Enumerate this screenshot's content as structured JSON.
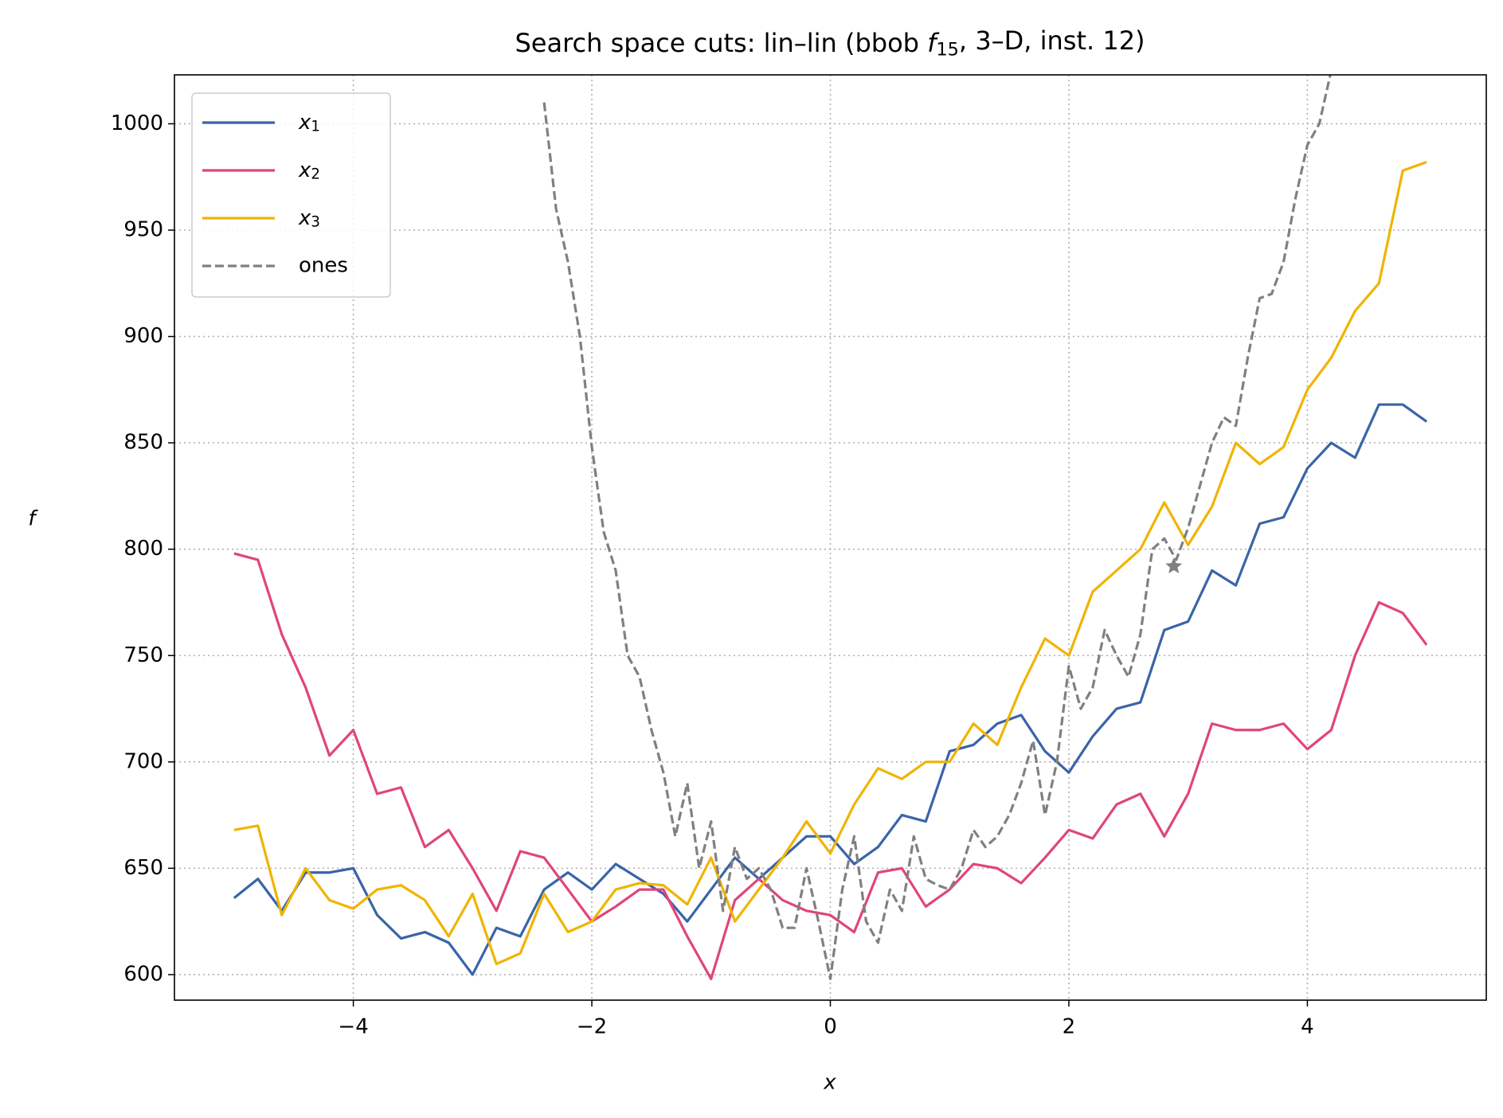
{
  "chart_data": {
    "type": "line",
    "title": "Search space cuts: lin–lin (bbob f15, 3–D, inst. 12)",
    "xlabel": "x",
    "ylabel": "f",
    "xlim": [
      -5.5,
      5.5
    ],
    "ylim": [
      588,
      1023
    ],
    "xticks": [
      {
        "value": -4,
        "label": "−4"
      },
      {
        "value": -2,
        "label": "−2"
      },
      0,
      2,
      4
    ],
    "yticks": [
      600,
      650,
      700,
      750,
      800,
      850,
      900,
      950,
      1000
    ],
    "grid": true,
    "legend": "upper left",
    "series": [
      {
        "name": "x1",
        "color": "#3a64a8",
        "style": "solid",
        "x": [
          -5.0,
          -4.8,
          -4.6,
          -4.4,
          -4.2,
          -4.0,
          -3.8,
          -3.6,
          -3.4,
          -3.2,
          -3.0,
          -2.8,
          -2.6,
          -2.4,
          -2.2,
          -2.0,
          -1.8,
          -1.6,
          -1.4,
          -1.2,
          -1.0,
          -0.8,
          -0.6,
          -0.4,
          -0.2,
          0.0,
          0.2,
          0.4,
          0.6,
          0.8,
          1.0,
          1.2,
          1.4,
          1.6,
          1.8,
          2.0,
          2.2,
          2.4,
          2.6,
          2.8,
          3.0,
          3.2,
          3.4,
          3.6,
          3.8,
          4.0,
          4.2,
          4.4,
          4.6,
          4.8,
          5.0
        ],
        "values": [
          636,
          645,
          630,
          648,
          648,
          650,
          628,
          617,
          620,
          615,
          600,
          622,
          618,
          640,
          648,
          640,
          652,
          645,
          638,
          625,
          640,
          655,
          645,
          655,
          665,
          665,
          652,
          660,
          675,
          672,
          705,
          708,
          718,
          722,
          705,
          695,
          712,
          725,
          728,
          762,
          766,
          790,
          783,
          812,
          815,
          838,
          850,
          843,
          868,
          868,
          860
        ]
      },
      {
        "name": "x2",
        "color": "#e0457b",
        "style": "solid",
        "x": [
          -5.0,
          -4.8,
          -4.6,
          -4.4,
          -4.2,
          -4.0,
          -3.8,
          -3.6,
          -3.4,
          -3.2,
          -3.0,
          -2.8,
          -2.6,
          -2.4,
          -2.2,
          -2.0,
          -1.8,
          -1.6,
          -1.4,
          -1.2,
          -1.0,
          -0.8,
          -0.6,
          -0.4,
          -0.2,
          0.0,
          0.2,
          0.4,
          0.6,
          0.8,
          1.0,
          1.2,
          1.4,
          1.6,
          1.8,
          2.0,
          2.2,
          2.4,
          2.6,
          2.8,
          3.0,
          3.2,
          3.4,
          3.6,
          3.8,
          4.0,
          4.2,
          4.4,
          4.6,
          4.8,
          5.0
        ],
        "values": [
          798,
          795,
          760,
          735,
          703,
          715,
          685,
          688,
          660,
          668,
          650,
          630,
          658,
          655,
          640,
          625,
          632,
          640,
          640,
          618,
          598,
          635,
          645,
          635,
          630,
          628,
          620,
          648,
          650,
          632,
          640,
          652,
          650,
          643,
          655,
          668,
          664,
          680,
          685,
          665,
          685,
          718,
          715,
          715,
          718,
          706,
          715,
          750,
          775,
          770,
          755
        ]
      },
      {
        "name": "x3",
        "color": "#f0b400",
        "style": "solid",
        "x": [
          -5.0,
          -4.8,
          -4.6,
          -4.4,
          -4.2,
          -4.0,
          -3.8,
          -3.6,
          -3.4,
          -3.2,
          -3.0,
          -2.8,
          -2.6,
          -2.4,
          -2.2,
          -2.0,
          -1.8,
          -1.6,
          -1.4,
          -1.2,
          -1.0,
          -0.8,
          -0.6,
          -0.4,
          -0.2,
          0.0,
          0.2,
          0.4,
          0.6,
          0.8,
          1.0,
          1.2,
          1.4,
          1.6,
          1.8,
          2.0,
          2.2,
          2.4,
          2.6,
          2.8,
          3.0,
          3.2,
          3.4,
          3.6,
          3.8,
          4.0,
          4.2,
          4.4,
          4.6,
          4.8,
          5.0
        ],
        "values": [
          668,
          670,
          628,
          650,
          635,
          631,
          640,
          642,
          635,
          618,
          638,
          605,
          610,
          638,
          620,
          625,
          640,
          643,
          642,
          633,
          655,
          625,
          640,
          655,
          672,
          657,
          680,
          697,
          692,
          700,
          700,
          718,
          708,
          735,
          758,
          750,
          780,
          790,
          800,
          822,
          802,
          820,
          850,
          840,
          848,
          875,
          890,
          912,
          925,
          978,
          982
        ]
      },
      {
        "name": "ones",
        "color": "#808080",
        "style": "dashed",
        "x": [
          -2.4,
          -2.3,
          -2.2,
          -2.1,
          -2.0,
          -1.9,
          -1.8,
          -1.7,
          -1.6,
          -1.5,
          -1.4,
          -1.3,
          -1.2,
          -1.1,
          -1.0,
          -0.9,
          -0.8,
          -0.7,
          -0.6,
          -0.5,
          -0.4,
          -0.3,
          -0.2,
          -0.1,
          0.0,
          0.1,
          0.2,
          0.3,
          0.4,
          0.5,
          0.6,
          0.7,
          0.8,
          0.9,
          1.0,
          1.1,
          1.2,
          1.3,
          1.4,
          1.5,
          1.6,
          1.7,
          1.8,
          1.9,
          2.0,
          2.1,
          2.2,
          2.3,
          2.4,
          2.5,
          2.6,
          2.7,
          2.8,
          2.9,
          3.0,
          3.1,
          3.2,
          3.3,
          3.4,
          3.5,
          3.6,
          3.7,
          3.8,
          3.9,
          4.0,
          4.1,
          4.2
        ],
        "values": [
          1010,
          960,
          935,
          900,
          848,
          808,
          790,
          750,
          740,
          715,
          695,
          665,
          690,
          650,
          672,
          630,
          660,
          645,
          650,
          640,
          622,
          622,
          650,
          625,
          598,
          640,
          665,
          625,
          615,
          640,
          630,
          665,
          645,
          642,
          640,
          650,
          668,
          660,
          665,
          675,
          690,
          710,
          675,
          700,
          745,
          725,
          735,
          762,
          750,
          740,
          760,
          800,
          805,
          795,
          810,
          830,
          850,
          862,
          858,
          890,
          918,
          920,
          935,
          965,
          990,
          1000,
          1025
        ]
      }
    ],
    "markers": [
      {
        "x": 2.88,
        "y": 792,
        "color": "#808080"
      }
    ]
  }
}
